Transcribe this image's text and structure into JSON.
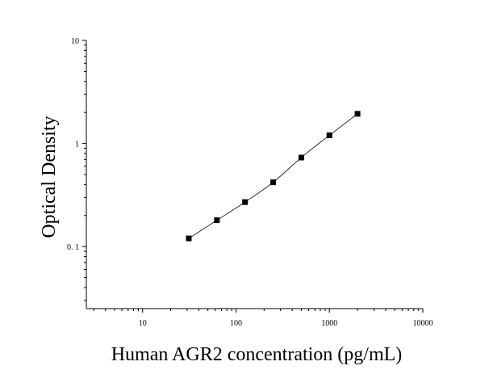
{
  "chart_data": {
    "type": "scatter",
    "title": "",
    "xlabel": "Human AGR2 concentration (pg/mL)",
    "ylabel": "Optical Density",
    "x_scale": "log",
    "y_scale": "log",
    "xlim": [
      2.5,
      10000
    ],
    "ylim": [
      0.025,
      10
    ],
    "x_ticks": [
      {
        "value": 10,
        "label": "10"
      },
      {
        "value": 100,
        "label": "100"
      },
      {
        "value": 1000,
        "label": "1000"
      },
      {
        "value": 10000,
        "label": "10000"
      }
    ],
    "y_ticks": [
      {
        "value": 0.1,
        "label": "0. 1"
      },
      {
        "value": 1,
        "label": "1"
      },
      {
        "value": 10,
        "label": "10"
      }
    ],
    "grid": false,
    "legend": "none",
    "series": [
      {
        "points": [
          {
            "x": 31.25,
            "y": 0.12
          },
          {
            "x": 62.5,
            "y": 0.18
          },
          {
            "x": 125,
            "y": 0.27
          },
          {
            "x": 250,
            "y": 0.42
          },
          {
            "x": 500,
            "y": 0.73
          },
          {
            "x": 1000,
            "y": 1.2
          },
          {
            "x": 2000,
            "y": 1.94
          }
        ],
        "fit_curve": true
      }
    ],
    "colors": {
      "marker": "#000000",
      "line": "#000000",
      "axis": "#000000"
    }
  }
}
